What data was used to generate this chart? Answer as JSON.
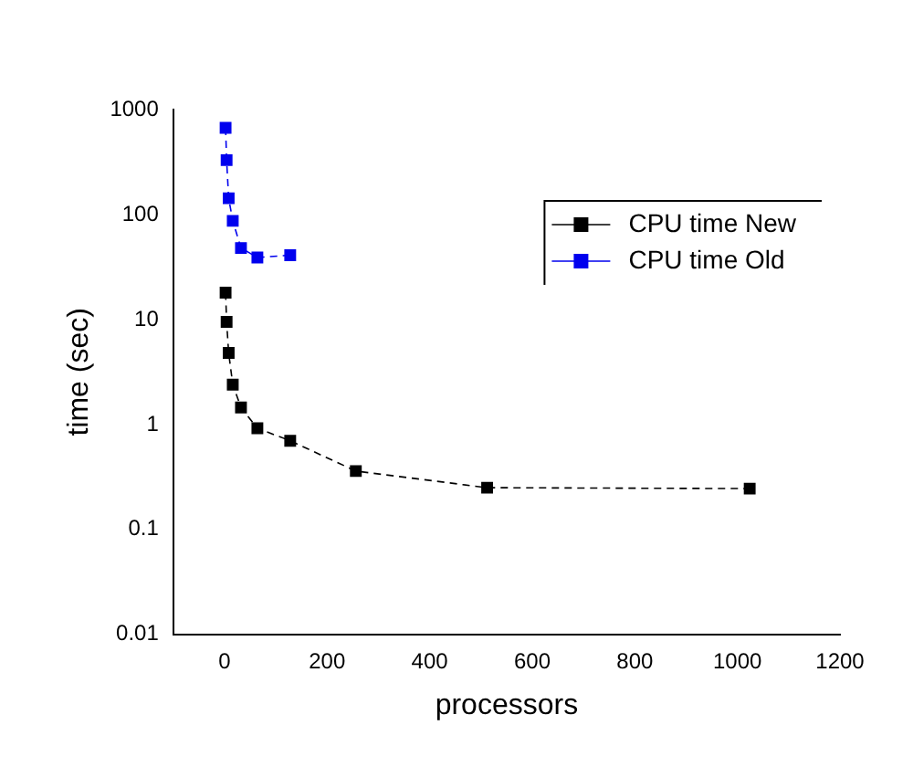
{
  "chart_data": {
    "type": "line",
    "xlabel": "processors",
    "ylabel": "time (sec)",
    "series": [
      {
        "name": "CPU time New",
        "color": "#000000",
        "x": [
          2,
          4,
          8,
          16,
          32,
          64,
          128,
          256,
          512,
          1024
        ],
        "values": [
          18,
          9.5,
          4.8,
          2.4,
          1.45,
          0.92,
          0.7,
          0.36,
          0.25,
          0.245
        ]
      },
      {
        "name": "CPU time Old",
        "color": "#0000ee",
        "x": [
          2,
          4,
          8,
          16,
          32,
          64,
          128
        ],
        "values": [
          670,
          330,
          143,
          87,
          48,
          39,
          41
        ]
      }
    ],
    "xlim": [
      -100,
      1200
    ],
    "xticks": [
      0,
      200,
      400,
      600,
      800,
      1000,
      1200
    ],
    "ylim": [
      0.01,
      1000
    ],
    "yticks": [
      0.01,
      0.1,
      1,
      10,
      100,
      1000
    ],
    "log": "y",
    "grid": false,
    "legend": "top right",
    "marker": "square",
    "line_style": "dashed"
  }
}
